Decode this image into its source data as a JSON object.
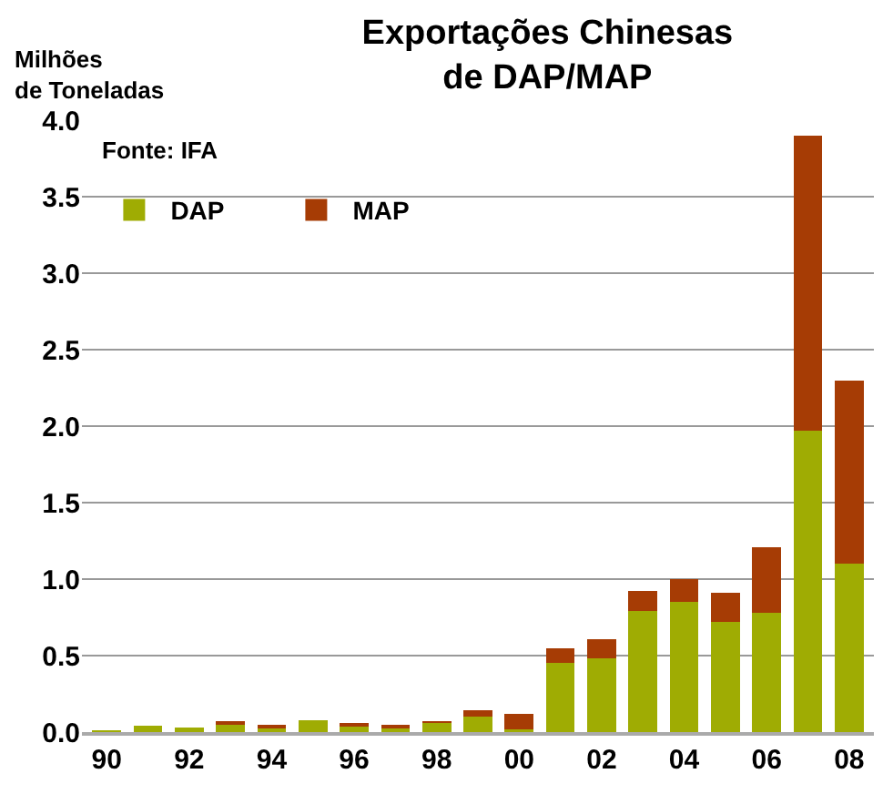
{
  "chart_data": {
    "type": "bar",
    "title": "Exportações Chinesas\nde DAP/MAP",
    "ylabel": "Milhões\nde Toneladas",
    "annotations": [
      "Fonte: IFA"
    ],
    "categories": [
      "90",
      null,
      "92",
      null,
      "94",
      null,
      "96",
      null,
      "98",
      null,
      "00",
      null,
      "02",
      null,
      "04",
      null,
      "06",
      null,
      "08"
    ],
    "series": [
      {
        "name": "DAP",
        "color": "#9fac03",
        "values": [
          0.01,
          0.04,
          0.03,
          0.05,
          0.03,
          0.08,
          0.04,
          0.03,
          0.06,
          0.1,
          0.02,
          0.45,
          0.48,
          0.79,
          0.85,
          0.72,
          0.78,
          1.97,
          1.1
        ]
      },
      {
        "name": "MAP",
        "color": "#a63c05",
        "values": [
          0,
          0,
          0,
          0.01,
          0.01,
          0,
          0.01,
          0.01,
          0.01,
          0.04,
          0.1,
          0.1,
          0.13,
          0.13,
          0.15,
          0.19,
          0.43,
          1.93,
          1.2
        ]
      }
    ],
    "stacked": true,
    "ylim": [
      0,
      4
    ],
    "yticks": [
      {
        "value": 0,
        "label": "0.0"
      },
      {
        "value": 0.5,
        "label": "0.5"
      },
      {
        "value": 1,
        "label": "1.0"
      },
      {
        "value": 1.5,
        "label": "1.5"
      },
      {
        "value": 2,
        "label": "2.0"
      },
      {
        "value": 2.5,
        "label": "2.5"
      },
      {
        "value": 3,
        "label": "3.0"
      },
      {
        "value": 3.5,
        "label": "3.5"
      },
      {
        "value": 4,
        "label": "4.0"
      }
    ],
    "grid": "y",
    "legend": "top left"
  }
}
